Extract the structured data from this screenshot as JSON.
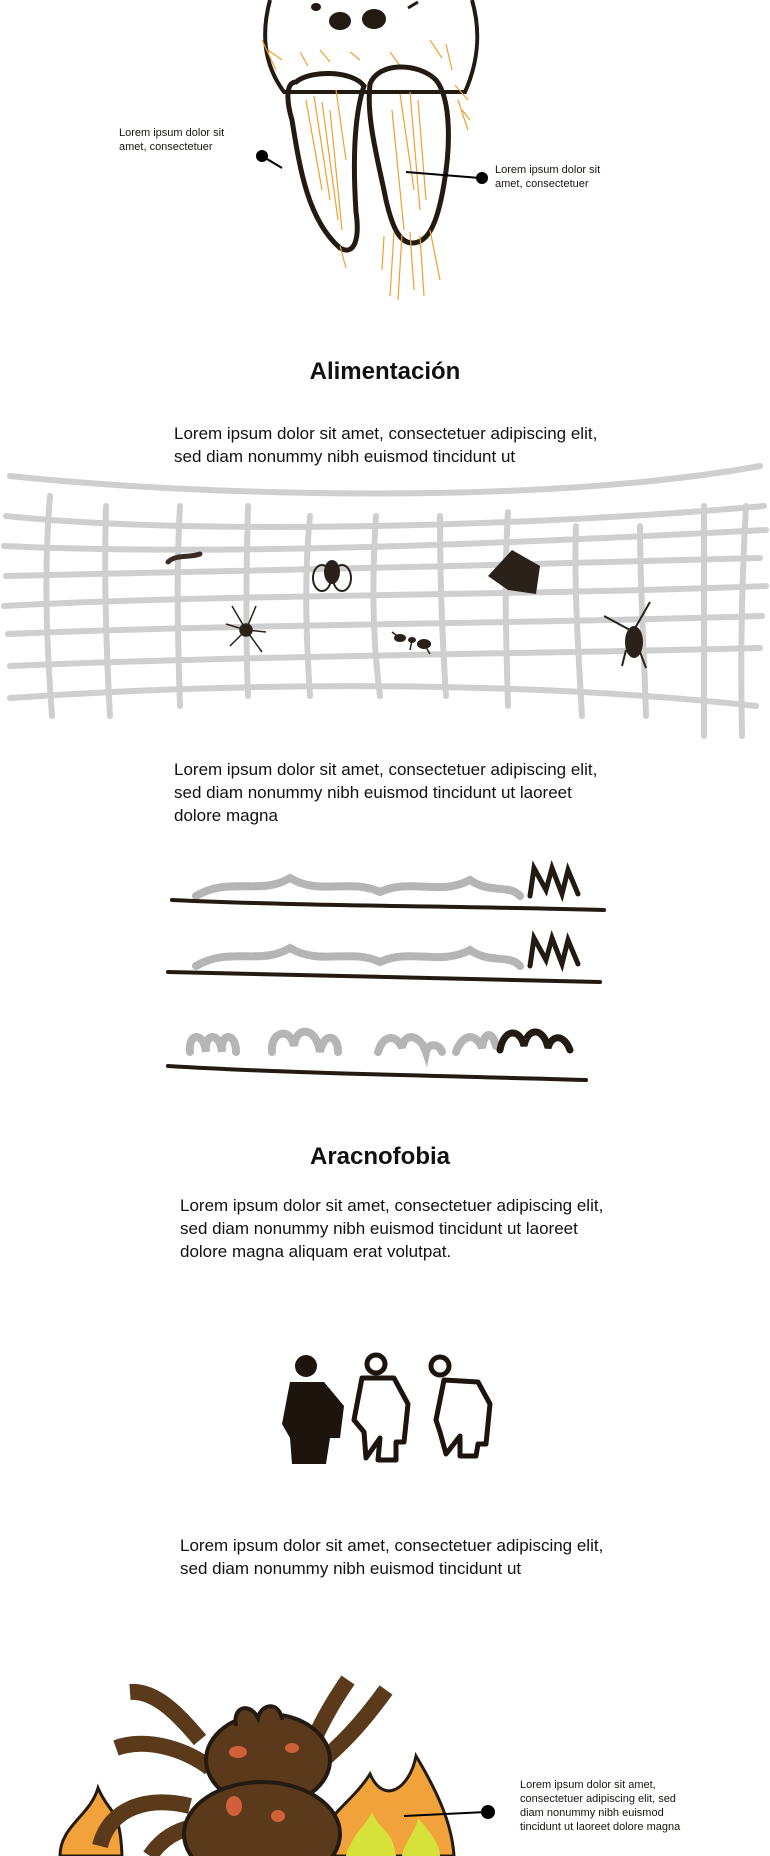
{
  "anatomy": {
    "note_left": "Lorem ipsum dolor sit amet, consectetuer",
    "note_right": "Lorem ipsum dolor sit amet, consectetuer"
  },
  "alimentacion": {
    "heading": "Alimentación",
    "intro": "Lorem ipsum dolor sit amet, consectetuer adipiscing elit, sed diam nonummy nibh euismod tincidunt ut",
    "body": "Lorem ipsum dolor sit amet, consectetuer adipiscing elit, sed diam nonummy nibh euismod tincidunt ut laoreet dolore magna"
  },
  "aracnofobia": {
    "heading": "Aracnofobia",
    "intro": "Lorem ipsum dolor sit amet, consectetuer adipiscing elit, sed diam nonummy nibh euismod tincidunt ut laoreet dolore magna aliquam erat volutpat.",
    "body": "Lorem ipsum dolor sit amet, consectetuer adipiscing elit, sed diam nonummy nibh euismod tincidunt ut",
    "note_bottom": "Lorem ipsum dolor sit amet, consectetuer adipiscing elit, sed diam nonummy nibh euismod tincidunt ut laoreet dolore magna"
  },
  "colors": {
    "ink": "#231a12",
    "hair": "#f0a030",
    "web": "#cfcfcf",
    "scribble_gray": "#b5b5b5",
    "spider_brown": "#5a3a1a",
    "spot_red": "#d0603a",
    "flame_orange": "#f2a23a",
    "flame_yellow": "#d6e23a"
  },
  "icons": {
    "prey": [
      "worm-icon",
      "fly-icon",
      "moth-icon",
      "spider-icon",
      "ant-icon",
      "cricket-icon"
    ],
    "people": [
      "person-solid-icon",
      "person-outline-icon",
      "person-outline-icon"
    ]
  }
}
